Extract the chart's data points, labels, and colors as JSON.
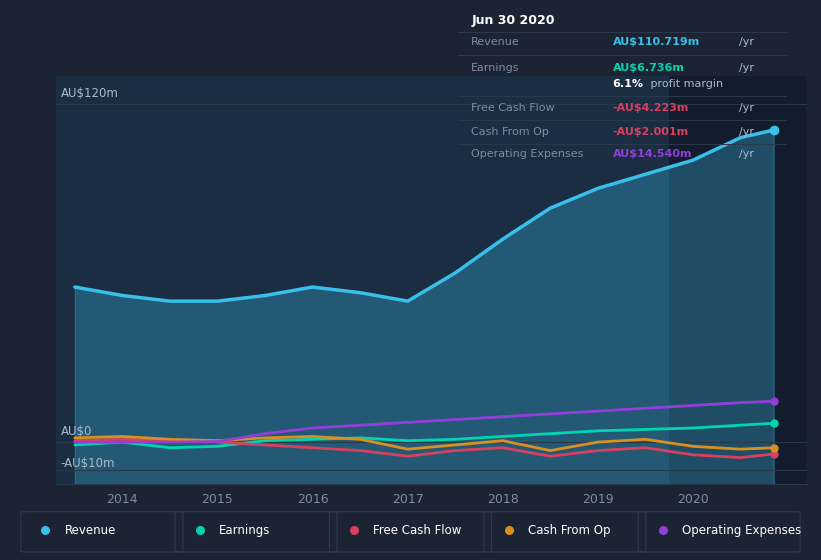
{
  "bg_color": "#1c2333",
  "plot_bg_color": "#1a2d42",
  "plot_bg_color_dark": "#131c2c",
  "years": [
    2013.5,
    2014.0,
    2014.5,
    2015.0,
    2015.5,
    2016.0,
    2016.5,
    2017.0,
    2017.5,
    2018.0,
    2018.5,
    2019.0,
    2019.5,
    2020.0,
    2020.5,
    2020.85
  ],
  "revenue": [
    55,
    52,
    50,
    50,
    52,
    55,
    53,
    50,
    60,
    72,
    83,
    90,
    95,
    100,
    108,
    110.7
  ],
  "earnings": [
    -1.0,
    0.0,
    -2.0,
    -1.5,
    0.5,
    1.0,
    1.5,
    0.5,
    1.0,
    2.0,
    3.0,
    4.0,
    4.5,
    5.0,
    6.0,
    6.7
  ],
  "fcf": [
    0.5,
    1.0,
    0.5,
    0.0,
    -1.0,
    -2.0,
    -3.0,
    -5.0,
    -3.0,
    -2.0,
    -5.0,
    -3.0,
    -2.0,
    -4.5,
    -5.5,
    -4.2
  ],
  "cfop": [
    1.5,
    2.0,
    1.0,
    0.5,
    1.5,
    2.0,
    1.0,
    -2.5,
    -1.0,
    0.5,
    -3.0,
    0.0,
    1.0,
    -1.5,
    -2.5,
    -2.0
  ],
  "opex": [
    0.0,
    0.0,
    0.0,
    0.2,
    3.0,
    5.0,
    6.0,
    7.0,
    8.0,
    9.0,
    10.0,
    11.0,
    12.0,
    13.0,
    14.0,
    14.5
  ],
  "revenue_color": "#38bfea",
  "earnings_color": "#00d4b0",
  "fcf_color": "#d84060",
  "cfop_color": "#d89020",
  "opex_color": "#9040d8",
  "ylim": [
    -15,
    130
  ],
  "xlim": [
    2013.3,
    2021.2
  ],
  "dark_region_start": 2019.75,
  "x_tick_vals": [
    2014,
    2015,
    2016,
    2017,
    2018,
    2019,
    2020
  ],
  "x_tick_labels": [
    "2014",
    "2015",
    "2016",
    "2017",
    "2018",
    "2019",
    "2020"
  ],
  "y_labels": [
    [
      "AU$120m",
      120
    ],
    [
      "AU$0",
      0
    ],
    [
      "-AU$10m",
      -10
    ]
  ],
  "legend_labels": [
    "Revenue",
    "Earnings",
    "Free Cash Flow",
    "Cash From Op",
    "Operating Expenses"
  ],
  "info_title": "Jun 30 2020",
  "info_rows": [
    {
      "label": "Revenue",
      "value": "AU$110.719m",
      "vcolor": "#38bfea",
      "suffix": "/yr",
      "sub": null
    },
    {
      "label": "Earnings",
      "value": "AU$6.736m",
      "vcolor": "#00d4b0",
      "suffix": "/yr",
      "sub": {
        "bold": "6.1%",
        "rest": " profit margin"
      }
    },
    {
      "label": "Free Cash Flow",
      "value": "-AU$4.223m",
      "vcolor": "#d84060",
      "suffix": "/yr",
      "sub": null
    },
    {
      "label": "Cash From Op",
      "value": "-AU$2.001m",
      "vcolor": "#d84060",
      "suffix": "/yr",
      "sub": null
    },
    {
      "label": "Operating Expenses",
      "value": "AU$14.540m",
      "vcolor": "#9040d8",
      "suffix": "/yr",
      "sub": null
    }
  ],
  "info_box_bg": "#08101a",
  "info_box_border": "#2a3a4a",
  "info_label_color": "#7a8ea0",
  "info_suffix_color": "#aabbcc",
  "info_title_color": "#ffffff"
}
